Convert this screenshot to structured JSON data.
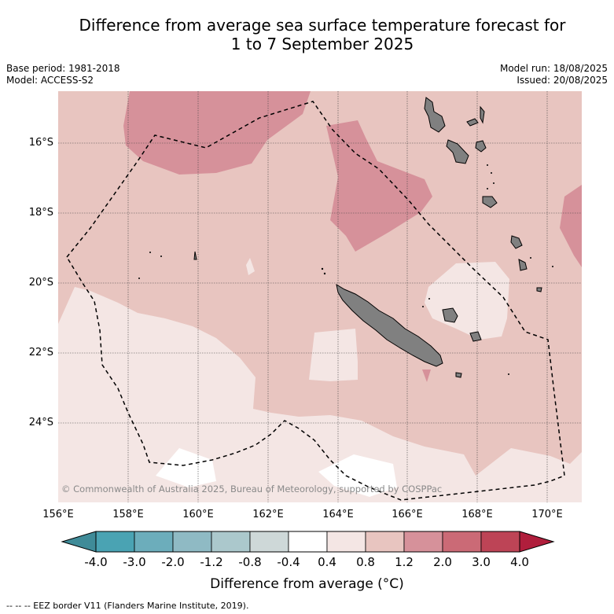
{
  "header": {
    "title_line1": "Difference from average sea surface temperature forecast for",
    "title_line2": "1 to 7 September 2025",
    "base_period": "Base period: 1981-2018",
    "model": "Model: ACCESS-S2",
    "model_run": "Model run: 18/08/2025",
    "issued": "Issued: 20/08/2025"
  },
  "map": {
    "lat_labels": [
      "16°S",
      "18°S",
      "20°S",
      "22°S",
      "24°S"
    ],
    "lon_labels": [
      "156°E",
      "158°E",
      "160°E",
      "162°E",
      "164°E",
      "166°E",
      "168°E",
      "170°E"
    ],
    "copyright": "© Commonwealth of Australia 2025, Bureau of Meteorology, supported by COSPPac",
    "colors": {
      "band_0_4_0_8": "#f4e6e4",
      "band_0_8_1_2": "#e8c5c0",
      "band_1_2_2_0": "#d6919a",
      "land": "#808080"
    }
  },
  "colorbar": {
    "ticks": [
      "-4.0",
      "-3.0",
      "-2.0",
      "-1.2",
      "-0.8",
      "-0.4",
      "0.4",
      "0.8",
      "1.2",
      "2.0",
      "3.0",
      "4.0"
    ],
    "colors": [
      "#4aa3b3",
      "#6cadbb",
      "#8fbac4",
      "#abc8cc",
      "#ced8d8",
      "#ffffff",
      "#f4e6e4",
      "#e8c5c0",
      "#d6919a",
      "#cb6a76",
      "#bd4456"
    ],
    "under_color": "#3f8b98",
    "over_color": "#b01e3c",
    "label": "Difference from average (°C)"
  },
  "footnote": "--  --  -- EEZ border V11 (Flanders Marine Institute, 2019)."
}
